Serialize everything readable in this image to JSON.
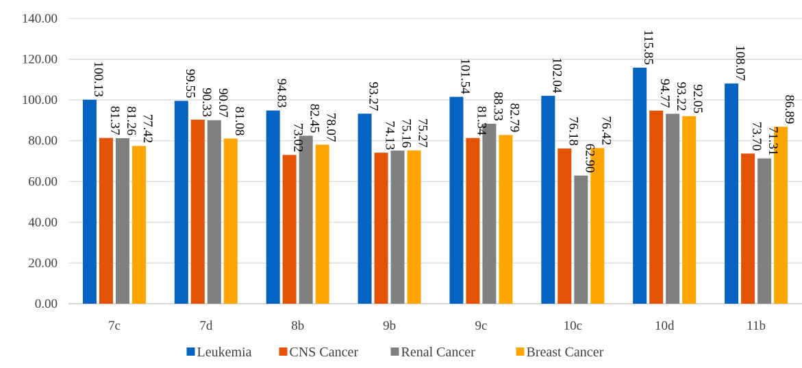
{
  "chart_data": {
    "type": "bar",
    "title": "",
    "xlabel": "",
    "ylabel": "",
    "categories": [
      "7c",
      "7d",
      "8b",
      "9b",
      "9c",
      "10c",
      "10d",
      "11b"
    ],
    "series": [
      {
        "name": "Leukemia",
        "color": "#0563C1",
        "values": [
          100.13,
          99.55,
          94.83,
          93.27,
          101.54,
          102.04,
          115.85,
          108.07
        ]
      },
      {
        "name": "CNS Cancer",
        "color": "#E35205",
        "values": [
          81.37,
          90.33,
          73.02,
          74.13,
          81.34,
          76.18,
          94.77,
          73.7
        ]
      },
      {
        "name": "Renal Cancer",
        "color": "#808080",
        "values": [
          81.26,
          90.07,
          82.45,
          75.16,
          88.33,
          62.9,
          93.22,
          71.31
        ]
      },
      {
        "name": "Breast Cancer",
        "color": "#FFA500",
        "values": [
          77.42,
          81.08,
          78.07,
          75.27,
          82.79,
          76.42,
          92.05,
          86.89
        ]
      }
    ],
    "ylim": [
      0,
      140
    ],
    "yticks": [
      "0.00",
      "20.00",
      "40.00",
      "60.00",
      "80.00",
      "100.00",
      "120.00",
      "140.00"
    ],
    "grid": true,
    "gridColor": "#d9d9d9",
    "legend": "bottom",
    "dataLabels": true,
    "dataLabelRotation": "vertical"
  }
}
